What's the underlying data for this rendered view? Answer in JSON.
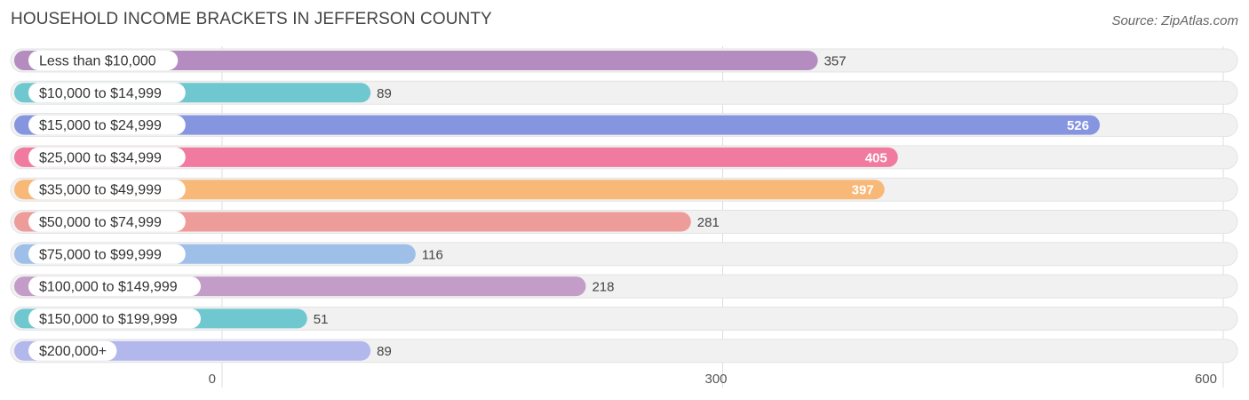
{
  "title": "HOUSEHOLD INCOME BRACKETS IN JEFFERSON COUNTY",
  "source": "Source: ZipAtlas.com",
  "chart_data": {
    "type": "bar",
    "orientation": "horizontal",
    "categories": [
      "Less than $10,000",
      "$10,000 to $14,999",
      "$15,000 to $24,999",
      "$25,000 to $34,999",
      "$35,000 to $49,999",
      "$50,000 to $74,999",
      "$75,000 to $99,999",
      "$100,000 to $149,999",
      "$150,000 to $199,999",
      "$200,000+"
    ],
    "values": [
      357,
      89,
      526,
      405,
      397,
      281,
      116,
      218,
      51,
      89
    ],
    "colors": [
      "#b48cc0",
      "#6fc8cf",
      "#8695e0",
      "#f07aa0",
      "#f8b878",
      "#ee9c9a",
      "#9ec0e8",
      "#c49cc8",
      "#6fc8cf",
      "#b2b8ec"
    ],
    "xlim": [
      0,
      600
    ],
    "xticks": [
      "0",
      "300",
      "600"
    ],
    "grid": true
  }
}
